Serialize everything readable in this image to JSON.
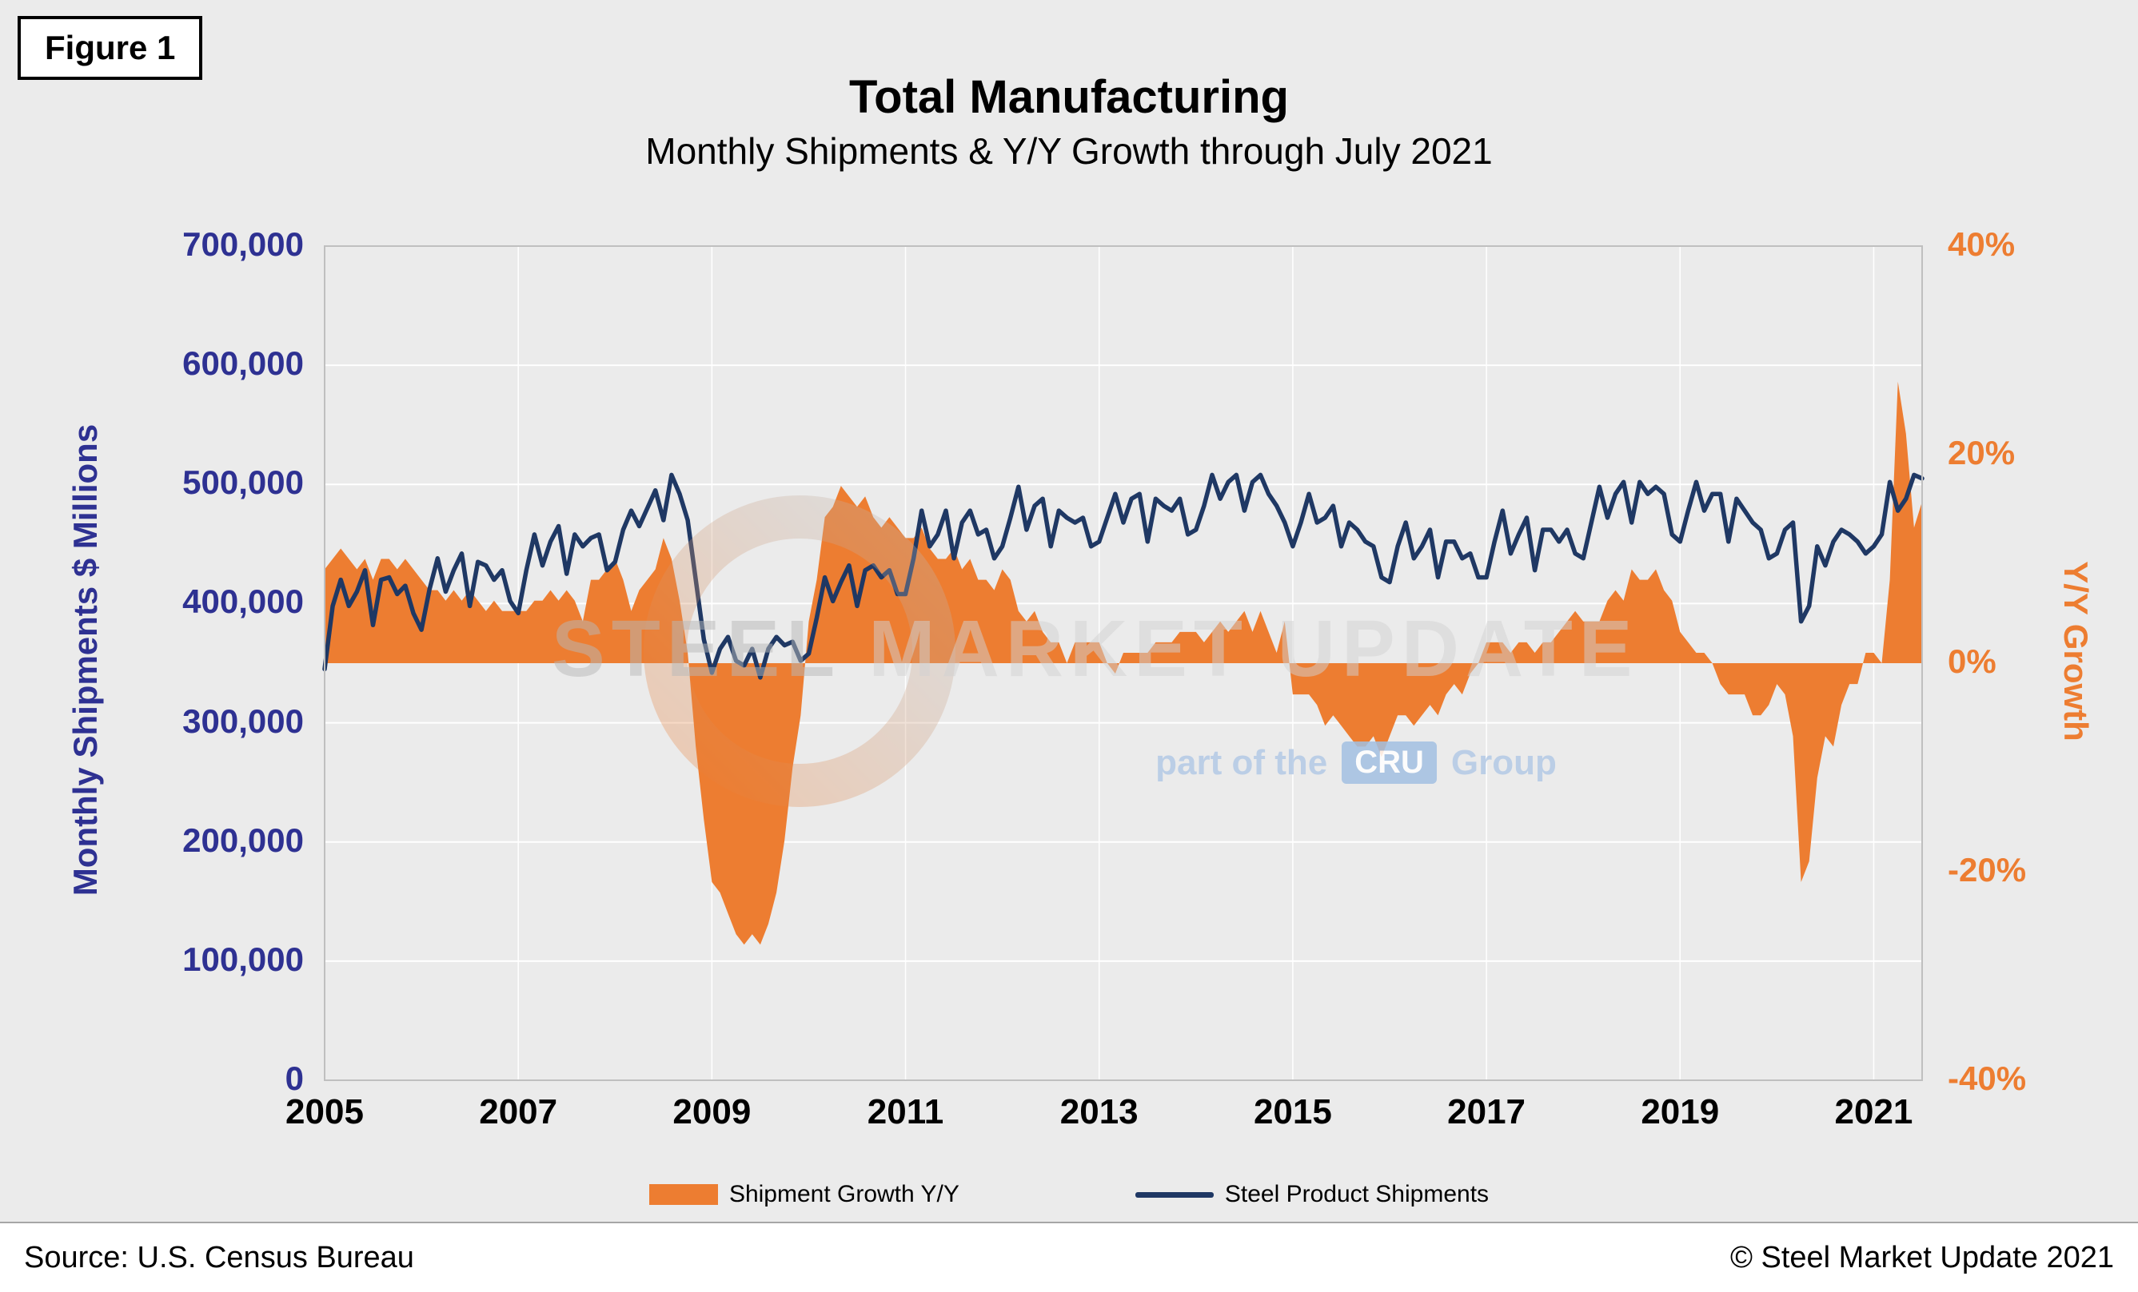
{
  "figure_label": "Figure 1",
  "title": "Total Manufacturing",
  "subtitle": "Monthly Shipments & Y/Y Growth through July 2021",
  "left_axis": {
    "title": "Monthly Shipments $ Millions",
    "ticks": [
      "700,000",
      "600,000",
      "500,000",
      "400,000",
      "300,000",
      "200,000",
      "100,000",
      "0"
    ],
    "tick_values": [
      700000,
      600000,
      500000,
      400000,
      300000,
      200000,
      100000,
      0
    ],
    "color": "#2E3192"
  },
  "right_axis": {
    "title": "Y/Y Growth",
    "ticks": [
      "40%",
      "20%",
      "0%",
      "-20%",
      "-40%"
    ],
    "tick_values": [
      40,
      20,
      0,
      -20,
      -40
    ],
    "color": "#ED7D31"
  },
  "x_axis": {
    "labels": [
      "2005",
      "2007",
      "2009",
      "2011",
      "2013",
      "2015",
      "2017",
      "2019",
      "2021"
    ]
  },
  "legend": [
    {
      "label": "Shipment Growth Y/Y",
      "type": "area",
      "color": "#ED7D31"
    },
    {
      "label": "Steel Product Shipments",
      "type": "line",
      "color": "#1F3864"
    }
  ],
  "footer": {
    "source": "Source: U.S. Census Bureau",
    "copyright": "© Steel Market Update 2021"
  },
  "watermark": {
    "word1": "STEEL",
    "word2": "MARKET",
    "word3": "UPDATE",
    "tagline_pre": "part of the",
    "cru": "CRU",
    "tagline_post": "Group"
  },
  "chart_data": {
    "type": "combo",
    "title": "Total Manufacturing",
    "subtitle": "Monthly Shipments & Y/Y Growth through July 2021",
    "frequency": "monthly",
    "x_start": "2005-01",
    "x_end": "2021-07",
    "left_axis_range": [
      0,
      700000
    ],
    "right_axis_range": [
      -40,
      40
    ],
    "grid": "horizontal",
    "legend_position": "bottom",
    "series": [
      {
        "name": "Shipment Growth Y/Y",
        "type": "area",
        "axis": "right",
        "unit": "%",
        "color": "#ED7D31",
        "values": [
          9,
          10,
          11,
          10,
          9,
          10,
          8,
          10,
          10,
          9,
          10,
          9,
          8,
          7,
          7,
          6,
          7,
          6,
          7,
          6,
          5,
          6,
          5,
          5,
          5,
          5,
          6,
          6,
          7,
          6,
          7,
          6,
          4,
          8,
          8,
          9,
          10,
          8,
          5,
          7,
          8,
          9,
          12,
          10,
          6,
          1,
          -8,
          -15,
          -21,
          -22,
          -24,
          -26,
          -27,
          -26,
          -27,
          -25,
          -22,
          -17,
          -10,
          -5,
          4,
          8,
          14,
          15,
          17,
          16,
          15,
          16,
          14,
          13,
          14,
          13,
          12,
          12,
          13,
          11,
          10,
          10,
          11,
          9,
          10,
          8,
          8,
          7,
          9,
          8,
          5,
          4,
          5,
          3,
          2,
          2,
          0,
          2,
          2,
          2,
          2,
          0,
          -1,
          1,
          1,
          1,
          1,
          2,
          2,
          2,
          3,
          3,
          3,
          2,
          3,
          4,
          3,
          4,
          5,
          3,
          5,
          3,
          1,
          4,
          -3,
          -3,
          -3,
          -4,
          -6,
          -5,
          -6,
          -7,
          -8,
          -8,
          -7,
          -9,
          -7,
          -5,
          -5,
          -6,
          -5,
          -4,
          -5,
          -3,
          -2,
          -3,
          -1,
          0,
          2,
          2,
          2,
          1,
          2,
          2,
          1,
          2,
          2,
          3,
          4,
          5,
          4,
          4,
          4,
          6,
          7,
          6,
          9,
          8,
          8,
          9,
          7,
          6,
          3,
          2,
          1,
          1,
          0,
          -2,
          -3,
          -3,
          -3,
          -5,
          -5,
          -4,
          -2,
          -3,
          -7,
          -21,
          -19,
          -11,
          -7,
          -8,
          -4,
          -2,
          -2,
          1,
          1,
          0,
          8,
          27,
          22,
          13,
          15.5
        ]
      },
      {
        "name": "Steel Product Shipments",
        "type": "line",
        "axis": "left",
        "unit": "$ millions",
        "color": "#1F3864",
        "values": [
          345000,
          398000,
          420000,
          398000,
          410000,
          428000,
          382000,
          420000,
          422000,
          408000,
          415000,
          392000,
          378000,
          412000,
          438000,
          410000,
          428000,
          442000,
          398000,
          435000,
          432000,
          420000,
          428000,
          402000,
          392000,
          428000,
          458000,
          432000,
          452000,
          465000,
          425000,
          458000,
          448000,
          455000,
          458000,
          428000,
          435000,
          462000,
          478000,
          465000,
          480000,
          495000,
          470000,
          508000,
          492000,
          470000,
          420000,
          370000,
          342000,
          362000,
          372000,
          352000,
          348000,
          362000,
          338000,
          362000,
          372000,
          365000,
          368000,
          352000,
          358000,
          388000,
          422000,
          402000,
          418000,
          432000,
          398000,
          428000,
          432000,
          422000,
          428000,
          408000,
          408000,
          438000,
          478000,
          448000,
          458000,
          478000,
          438000,
          468000,
          478000,
          458000,
          462000,
          438000,
          448000,
          472000,
          498000,
          462000,
          482000,
          488000,
          448000,
          478000,
          472000,
          468000,
          472000,
          448000,
          452000,
          472000,
          492000,
          468000,
          488000,
          492000,
          452000,
          488000,
          482000,
          478000,
          488000,
          458000,
          462000,
          482000,
          508000,
          488000,
          502000,
          508000,
          478000,
          502000,
          508000,
          492000,
          482000,
          468000,
          448000,
          468000,
          492000,
          468000,
          472000,
          482000,
          448000,
          468000,
          462000,
          452000,
          448000,
          422000,
          418000,
          448000,
          468000,
          438000,
          448000,
          462000,
          422000,
          452000,
          452000,
          438000,
          442000,
          422000,
          422000,
          452000,
          478000,
          442000,
          458000,
          472000,
          428000,
          462000,
          462000,
          452000,
          462000,
          442000,
          438000,
          468000,
          498000,
          472000,
          492000,
          502000,
          468000,
          502000,
          492000,
          498000,
          492000,
          458000,
          452000,
          478000,
          502000,
          478000,
          492000,
          492000,
          452000,
          488000,
          478000,
          468000,
          462000,
          438000,
          442000,
          462000,
          468000,
          385000,
          398000,
          448000,
          432000,
          452000,
          462000,
          458000,
          452000,
          442000,
          448000,
          458000,
          502000,
          478000,
          488000,
          508000,
          505000
        ]
      }
    ]
  }
}
